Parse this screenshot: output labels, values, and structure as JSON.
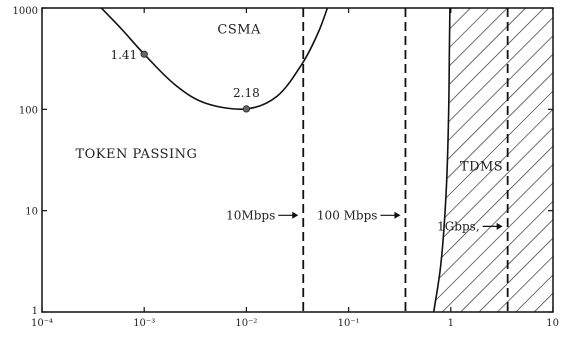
{
  "chart_data": {
    "type": "line",
    "xscale": "log",
    "yscale": "log",
    "xlim": [
      0.0001,
      10
    ],
    "ylim": [
      1,
      1000
    ],
    "x_tick_labels": [
      "10⁻⁴",
      "10⁻³",
      "10⁻²",
      "10⁻¹",
      "1",
      "10"
    ],
    "x_tick_values": [
      0.0001,
      0.001,
      0.01,
      0.1,
      1,
      10
    ],
    "y_tick_labels": [
      "1000",
      "100",
      "10",
      "1"
    ],
    "y_tick_values": [
      1000,
      100,
      10,
      1
    ],
    "grid": false,
    "curves": [
      {
        "id": "csma-boundary",
        "points": [
          {
            "x": 0.00038,
            "y": 1000
          },
          {
            "x": 0.0006,
            "y": 620
          },
          {
            "x": 0.001,
            "y": 350
          },
          {
            "x": 0.002,
            "y": 175
          },
          {
            "x": 0.004,
            "y": 115
          },
          {
            "x": 0.01,
            "y": 101
          },
          {
            "x": 0.02,
            "y": 135
          },
          {
            "x": 0.035,
            "y": 280
          },
          {
            "x": 0.05,
            "y": 560
          },
          {
            "x": 0.062,
            "y": 1000
          }
        ]
      },
      {
        "id": "tdms-boundary",
        "points": [
          {
            "x": 0.68,
            "y": 1
          },
          {
            "x": 0.8,
            "y": 3
          },
          {
            "x": 0.9,
            "y": 15
          },
          {
            "x": 0.95,
            "y": 80
          },
          {
            "x": 0.97,
            "y": 400
          },
          {
            "x": 0.98,
            "y": 1000
          }
        ]
      }
    ],
    "marked_points": [
      {
        "x": 0.001,
        "y": 350,
        "label": "1.41"
      },
      {
        "x": 0.01,
        "y": 101,
        "label": "2.18"
      }
    ],
    "vertical_lines": [
      {
        "x": 0.036,
        "label": "10Mbps",
        "label_y": 9
      },
      {
        "x": 0.36,
        "label": "100 Mbps",
        "label_y": 9
      },
      {
        "x": 3.6,
        "label": "1Gbps,",
        "label_y": 7
      }
    ],
    "region_labels": [
      {
        "text": "CSMA",
        "x": 0.0085,
        "y": 560
      },
      {
        "text": "TOKEN PASSING",
        "x": 0.00084,
        "y": 33
      },
      {
        "text": "TDMS",
        "x": 2.0,
        "y": 25
      }
    ],
    "hatched_region": {
      "from_curve": "tdms-boundary",
      "to_x": 10
    }
  }
}
